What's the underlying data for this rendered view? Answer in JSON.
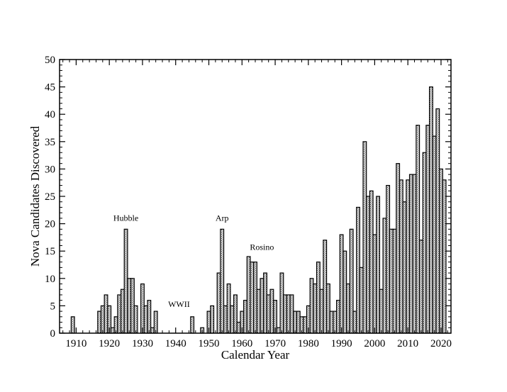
{
  "chart_data": {
    "type": "bar",
    "title": "",
    "xlabel": "Calendar Year",
    "ylabel": "Nova Candidates Discovered",
    "xlim": [
      1905,
      2023
    ],
    "ylim": [
      0,
      50
    ],
    "x_ticks": [
      1910,
      1920,
      1930,
      1940,
      1950,
      1960,
      1970,
      1980,
      1990,
      2000,
      2010,
      2020
    ],
    "y_ticks": [
      0,
      5,
      10,
      15,
      20,
      25,
      30,
      35,
      40,
      45,
      50
    ],
    "grid": false,
    "legend": "none",
    "bar_fill_color": "#b8b8b8",
    "x": [
      1909,
      1910,
      1911,
      1912,
      1913,
      1914,
      1915,
      1916,
      1917,
      1918,
      1919,
      1920,
      1921,
      1922,
      1923,
      1924,
      1925,
      1926,
      1927,
      1928,
      1929,
      1930,
      1931,
      1932,
      1933,
      1934,
      1935,
      1936,
      1937,
      1938,
      1939,
      1940,
      1941,
      1942,
      1943,
      1944,
      1945,
      1946,
      1947,
      1948,
      1949,
      1950,
      1951,
      1952,
      1953,
      1954,
      1955,
      1956,
      1957,
      1958,
      1959,
      1960,
      1961,
      1962,
      1963,
      1964,
      1965,
      1966,
      1967,
      1968,
      1969,
      1970,
      1971,
      1972,
      1973,
      1974,
      1975,
      1976,
      1977,
      1978,
      1979,
      1980,
      1981,
      1982,
      1983,
      1984,
      1985,
      1986,
      1987,
      1988,
      1989,
      1990,
      1991,
      1992,
      1993,
      1994,
      1995,
      1996,
      1997,
      1998,
      1999,
      2000,
      2001,
      2002,
      2003,
      2004,
      2005,
      2006,
      2007,
      2008,
      2009,
      2010,
      2011,
      2012,
      2013,
      2014,
      2015,
      2016,
      2017,
      2018,
      2019,
      2020,
      2021
    ],
    "values": [
      3,
      0,
      0,
      0,
      0,
      0,
      0,
      0,
      4,
      5,
      7,
      5,
      1,
      3,
      7,
      8,
      19,
      10,
      10,
      5,
      0,
      9,
      5,
      6,
      1,
      4,
      0,
      0,
      0,
      0,
      0,
      0,
      0,
      0,
      0,
      0,
      3,
      0,
      0,
      1,
      0,
      4,
      5,
      0,
      11,
      19,
      5,
      9,
      5,
      7,
      2,
      4,
      6,
      14,
      13,
      13,
      8,
      10,
      11,
      7,
      8,
      6,
      1,
      11,
      7,
      7,
      7,
      4,
      4,
      3,
      3,
      5,
      10,
      9,
      13,
      8,
      17,
      9,
      4,
      4,
      6,
      18,
      15,
      9,
      19,
      4,
      23,
      12,
      35,
      25,
      26,
      18,
      25,
      8,
      21,
      27,
      19,
      19,
      31,
      28,
      24,
      28,
      29,
      29,
      38,
      17,
      33,
      38,
      45,
      36,
      41,
      30,
      28
    ],
    "annotations": [
      {
        "label": "Hubble",
        "x": 1925,
        "y": 20.5
      },
      {
        "label": "WWII",
        "x": 1941,
        "y": 4.8
      },
      {
        "label": "Arp",
        "x": 1954,
        "y": 20.5
      },
      {
        "label": "Rosino",
        "x": 1966,
        "y": 15.2
      }
    ]
  }
}
